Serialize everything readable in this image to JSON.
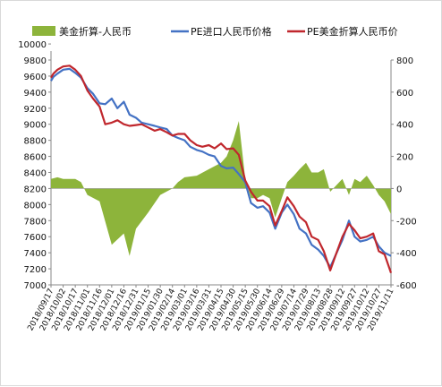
{
  "chart_data": {
    "type": "line",
    "legend": [
      {
        "label": "美金折算-人民币",
        "color": "#8DB43B",
        "kind": "area"
      },
      {
        "label": "PE进口人民币价格",
        "color": "#4472C4",
        "kind": "line"
      },
      {
        "label": "PE美金折算人民币价",
        "color": "#C0272D",
        "kind": "line"
      }
    ],
    "legend_position": "top",
    "y_left": {
      "min": 7000,
      "max": 9800,
      "step": 200,
      "ticks": [
        "10000",
        "9800",
        "9600",
        "9400",
        "9200",
        "9000",
        "8800",
        "8600",
        "8400",
        "8200",
        "8000",
        "7800",
        "7600",
        "7400",
        "7200",
        "7000"
      ]
    },
    "y_right": {
      "min": -600,
      "max": 800,
      "step": 200,
      "ticks": [
        "800",
        "600",
        "400",
        "200",
        "0",
        "-200",
        "-400",
        "-600"
      ]
    },
    "x_tick_labels": [
      "2018/09/17",
      "2018/10/02",
      "2018/10/17",
      "2018/11/01",
      "2018/11/16",
      "2018/12/01",
      "2018/12/16",
      "2018/12/31",
      "2019/01/15",
      "2019/01/30",
      "2019/02/14",
      "2019/03/01",
      "2019/03/16",
      "2019/03/31",
      "2019/04/15",
      "2019/04/30",
      "2019/05/15",
      "2019/05/30",
      "2019/06/14",
      "2019/06/29",
      "2019/07/14",
      "2019/07/29",
      "2019/08/13",
      "2019/08/28",
      "2019/09/12",
      "2019/09/27",
      "2019/10/12",
      "2019/10/27",
      "2019/11/11"
    ],
    "x_range": [
      "2018/09/17",
      "2019/11/11"
    ],
    "series": [
      {
        "name": "PE进口人民币价格",
        "axis": "left",
        "x": [
          "2018/09/17",
          "2018/09/20",
          "2018/09/25",
          "2018/10/02",
          "2018/10/10",
          "2018/10/17",
          "2018/10/24",
          "2018/11/01",
          "2018/11/08",
          "2018/11/16",
          "2018/11/23",
          "2018/12/01",
          "2018/12/08",
          "2018/12/16",
          "2018/12/23",
          "2018/12/31",
          "2019/01/07",
          "2019/01/15",
          "2019/01/23",
          "2019/01/30",
          "2019/02/07",
          "2019/02/14",
          "2019/02/21",
          "2019/03/01",
          "2019/03/08",
          "2019/03/16",
          "2019/03/23",
          "2019/03/31",
          "2019/04/07",
          "2019/04/15",
          "2019/04/22",
          "2019/04/30",
          "2019/05/07",
          "2019/05/15",
          "2019/05/22",
          "2019/05/30",
          "2019/06/06",
          "2019/06/14",
          "2019/06/21",
          "2019/06/29",
          "2019/07/06",
          "2019/07/14",
          "2019/07/21",
          "2019/07/29",
          "2019/08/05",
          "2019/08/13",
          "2019/08/20",
          "2019/08/28",
          "2019/09/04",
          "2019/09/12",
          "2019/09/20",
          "2019/09/27",
          "2019/10/04",
          "2019/10/12",
          "2019/10/20",
          "2019/10/27",
          "2019/11/03",
          "2019/11/11"
        ],
        "values": [
          9540,
          9590,
          9630,
          9680,
          9690,
          9640,
          9580,
          9450,
          9380,
          9260,
          9250,
          9320,
          9200,
          9280,
          9120,
          9080,
          9020,
          9000,
          8980,
          8960,
          8940,
          8860,
          8830,
          8800,
          8720,
          8680,
          8660,
          8620,
          8600,
          8480,
          8450,
          8460,
          8380,
          8280,
          8020,
          7960,
          7980,
          7900,
          7700,
          7900,
          8000,
          7880,
          7700,
          7640,
          7500,
          7440,
          7360,
          7220,
          7380,
          7560,
          7800,
          7600,
          7540,
          7560,
          7600,
          7480,
          7400,
          7360
        ]
      },
      {
        "name": "PE美金折算人民币价",
        "axis": "left",
        "x": [
          "2018/09/17",
          "2018/09/20",
          "2018/09/25",
          "2018/10/02",
          "2018/10/10",
          "2018/10/17",
          "2018/10/24",
          "2018/11/01",
          "2018/11/08",
          "2018/11/16",
          "2018/11/23",
          "2018/12/01",
          "2018/12/08",
          "2018/12/16",
          "2018/12/23",
          "2018/12/31",
          "2019/01/07",
          "2019/01/15",
          "2019/01/23",
          "2019/01/30",
          "2019/02/07",
          "2019/02/14",
          "2019/02/21",
          "2019/03/01",
          "2019/03/08",
          "2019/03/16",
          "2019/03/23",
          "2019/03/31",
          "2019/04/07",
          "2019/04/15",
          "2019/04/22",
          "2019/04/30",
          "2019/05/07",
          "2019/05/15",
          "2019/05/22",
          "2019/05/30",
          "2019/06/06",
          "2019/06/14",
          "2019/06/21",
          "2019/06/29",
          "2019/07/06",
          "2019/07/14",
          "2019/07/21",
          "2019/07/29",
          "2019/08/05",
          "2019/08/13",
          "2019/08/20",
          "2019/08/28",
          "2019/09/04",
          "2019/09/12",
          "2019/09/20",
          "2019/09/27",
          "2019/10/04",
          "2019/10/12",
          "2019/10/20",
          "2019/10/27",
          "2019/11/03",
          "2019/11/11"
        ],
        "values": [
          9580,
          9630,
          9680,
          9720,
          9730,
          9680,
          9600,
          9420,
          9320,
          9220,
          9000,
          9020,
          9050,
          9000,
          8980,
          8990,
          9000,
          8960,
          8920,
          8940,
          8900,
          8860,
          8880,
          8880,
          8800,
          8740,
          8720,
          8740,
          8700,
          8760,
          8690,
          8700,
          8620,
          8300,
          8160,
          8050,
          8050,
          7980,
          7740,
          7920,
          8090,
          7980,
          7850,
          7780,
          7600,
          7560,
          7420,
          7180,
          7380,
          7600,
          7760,
          7680,
          7580,
          7600,
          7640,
          7420,
          7380,
          7150
        ]
      },
      {
        "name": "美金折算-人民币",
        "axis": "right",
        "x": [
          "2018/09/17",
          "2018/09/25",
          "2018/10/02",
          "2018/10/17",
          "2018/10/24",
          "2018/11/01",
          "2018/11/16",
          "2018/12/01",
          "2018/12/16",
          "2018/12/23",
          "2018/12/31",
          "2019/01/15",
          "2019/01/30",
          "2019/02/14",
          "2019/02/21",
          "2019/03/01",
          "2019/03/16",
          "2019/03/31",
          "2019/04/15",
          "2019/04/22",
          "2019/04/30",
          "2019/05/07",
          "2019/05/15",
          "2019/05/22",
          "2019/05/30",
          "2019/06/06",
          "2019/06/14",
          "2019/06/21",
          "2019/06/29",
          "2019/07/06",
          "2019/07/14",
          "2019/07/21",
          "2019/07/29",
          "2019/08/05",
          "2019/08/13",
          "2019/08/20",
          "2019/08/28",
          "2019/09/12",
          "2019/09/20",
          "2019/09/27",
          "2019/10/04",
          "2019/10/12",
          "2019/10/20",
          "2019/10/27",
          "2019/11/03",
          "2019/11/11"
        ],
        "values": [
          60,
          70,
          60,
          60,
          40,
          -40,
          -80,
          -350,
          -280,
          -420,
          -250,
          -150,
          -40,
          0,
          40,
          70,
          80,
          120,
          160,
          200,
          300,
          420,
          60,
          -60,
          -60,
          -40,
          -60,
          -180,
          -60,
          40,
          80,
          120,
          160,
          100,
          100,
          120,
          -20,
          60,
          -40,
          60,
          40,
          80,
          20,
          -40,
          -80,
          -160
        ]
      }
    ]
  }
}
